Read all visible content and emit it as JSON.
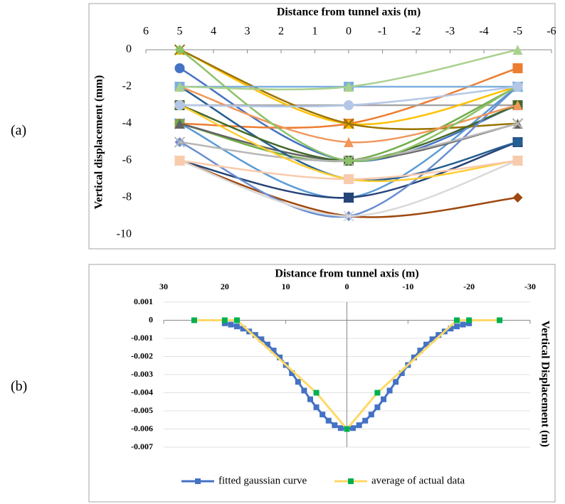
{
  "chart_data": [
    {
      "type": "line",
      "panel": "(a)",
      "title": "Distance from tunnel axis (m)",
      "y_label": "Vertical displacement (mm)",
      "smooth": true,
      "grid": false,
      "x": [
        5,
        0,
        -5
      ],
      "xlim": [
        6,
        -6
      ],
      "xticks": [
        6,
        5,
        4,
        3,
        2,
        1,
        0,
        -1,
        -2,
        -3,
        -4,
        -5,
        -6
      ],
      "ylim": [
        -10,
        0
      ],
      "yticks": [
        0,
        -2,
        -4,
        -6,
        -8,
        -10
      ],
      "series": [
        {
          "color": "#4472c4",
          "values": [
            -1,
            -6,
            -3
          ]
        },
        {
          "color": "#ed7d31",
          "values": [
            -4,
            -4,
            -1
          ]
        },
        {
          "color": "#a5a5a5",
          "values": [
            -3,
            -3,
            -3
          ]
        },
        {
          "color": "#ffc000",
          "values": [
            0,
            -4,
            -2
          ]
        },
        {
          "color": "#5b9bd5",
          "values": [
            -4,
            -8,
            -2
          ]
        },
        {
          "color": "#70ad47",
          "values": [
            -4,
            -6,
            -2
          ]
        },
        {
          "color": "#264478",
          "values": [
            -6,
            -8,
            -5
          ]
        },
        {
          "color": "#9e480e",
          "values": [
            -6,
            -9,
            -8
          ]
        },
        {
          "color": "#636363",
          "values": [
            -4,
            -6,
            -4
          ]
        },
        {
          "color": "#997300",
          "values": [
            0,
            -4,
            -4
          ]
        },
        {
          "color": "#255e91",
          "values": [
            -2,
            -7,
            -5
          ]
        },
        {
          "color": "#43682b",
          "values": [
            -3,
            -6,
            -3
          ]
        },
        {
          "color": "#698ed0",
          "values": [
            -5,
            -9,
            -2
          ]
        },
        {
          "color": "#f1975a",
          "values": [
            -2,
            -5,
            -3
          ]
        },
        {
          "color": "#b7b7b7",
          "values": [
            -5,
            -6,
            -4
          ]
        },
        {
          "color": "#ffcd33",
          "values": [
            -3,
            -7,
            -6
          ]
        },
        {
          "color": "#7cafdd",
          "values": [
            -2,
            -2,
            -2
          ]
        },
        {
          "color": "#8cc168",
          "values": [
            0,
            -6,
            -2
          ]
        },
        {
          "color": "#a9d18e",
          "values": [
            -2,
            -2,
            0
          ]
        },
        {
          "color": "#d9d9d9",
          "values": [
            -6,
            -9,
            -6
          ]
        },
        {
          "color": "#b4c7e7",
          "values": [
            -3,
            -3,
            -2
          ]
        },
        {
          "color": "#f8cbad",
          "values": [
            -6,
            -7,
            -6
          ]
        }
      ]
    },
    {
      "type": "line",
      "panel": "(b)",
      "title": "Distance from tunnel axis (m)",
      "y_label": "Vertical Displacement (m)",
      "smooth": false,
      "grid": true,
      "legend": "bottom",
      "xlim": [
        30,
        -30
      ],
      "xticks": [
        30,
        20,
        10,
        0,
        -10,
        -20,
        -30
      ],
      "ylim": [
        -0.007,
        0.001
      ],
      "yticks": [
        0.001,
        0,
        -0.001,
        -0.002,
        -0.003,
        -0.004,
        -0.005,
        -0.006,
        -0.007
      ],
      "series": [
        {
          "name": "fitted gaussian curve",
          "color": "#4472c4",
          "marker_color": "#4472c4",
          "x": [
            20,
            19,
            18,
            17,
            16,
            15,
            14,
            13,
            12,
            11,
            10,
            9,
            8,
            7,
            6,
            5,
            4,
            3,
            2,
            1,
            0,
            -1,
            -2,
            -3,
            -4,
            -5,
            -6,
            -7,
            -8,
            -9,
            -10,
            -11,
            -12,
            -13,
            -14,
            -15,
            -16,
            -17,
            -18,
            -19,
            -20
          ],
          "values": [
            -0.00017,
            -0.00024,
            -0.00034,
            -0.00046,
            -0.00062,
            -0.00081,
            -0.00105,
            -0.00134,
            -0.00167,
            -0.00205,
            -0.00247,
            -0.00292,
            -0.0034,
            -0.00388,
            -0.00436,
            -0.0048,
            -0.0052,
            -0.00554,
            -0.00579,
            -0.00595,
            -0.006,
            -0.00595,
            -0.00579,
            -0.00554,
            -0.0052,
            -0.0048,
            -0.00436,
            -0.00388,
            -0.0034,
            -0.00292,
            -0.00247,
            -0.00205,
            -0.00167,
            -0.00134,
            -0.00105,
            -0.00081,
            -0.00062,
            -0.00046,
            -0.00034,
            -0.00024,
            -0.00017
          ]
        },
        {
          "name": "average of actual data",
          "color": "#ffd966",
          "marker_color": "#00b050",
          "x": [
            25,
            20,
            18,
            5,
            0,
            -5,
            -18,
            -20,
            -25
          ],
          "values": [
            0,
            0,
            0,
            -0.004,
            -0.006,
            -0.004,
            0,
            0,
            0
          ]
        }
      ]
    }
  ]
}
